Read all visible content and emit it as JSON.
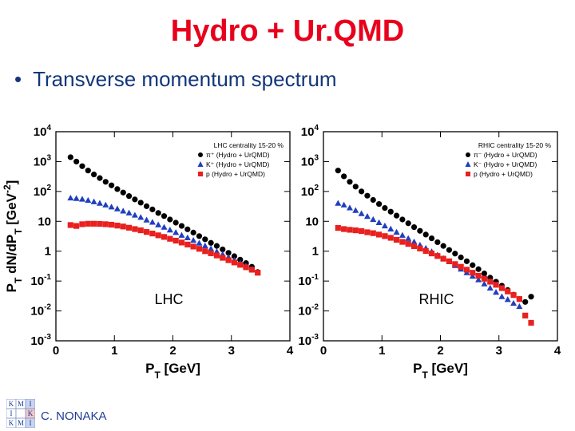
{
  "title": "Hydro + Ur.QMD",
  "bullet": {
    "marker": "•",
    "text": "Transverse momentum spectrum"
  },
  "footer": {
    "author": "C. NONAKA",
    "logo_letters": [
      "K",
      "M",
      "I",
      "I",
      "K",
      "M",
      "I"
    ]
  },
  "colors": {
    "title": "#e8001c",
    "bullet": "#12367a",
    "pion": "#000000",
    "kaon": "#1f3fbf",
    "proton": "#e8201e"
  },
  "chart_data": [
    {
      "type": "scatter",
      "xlabel": "P_T [GeV]",
      "ylabel": "P_T dN/dP_T [GeV^-2]",
      "xlim": [
        0,
        4
      ],
      "ylim": [
        0.001,
        10000
      ],
      "yscale": "log",
      "x_ticks": [
        "0",
        "1",
        "2",
        "3",
        "4"
      ],
      "y_ticks": [
        "10^-3",
        "10^-2",
        "10^-1",
        "1",
        "10",
        "10^2",
        "10^3",
        "10^4"
      ],
      "legend_title": "LHC centrality 15-20 %",
      "legend_position": "top-right",
      "annotation": "LHC",
      "series": [
        {
          "name": "π⁺ (Hydro + UrQMD)",
          "marker": "circle",
          "color": "#000000",
          "x": [
            0.25,
            0.35,
            0.45,
            0.55,
            0.65,
            0.75,
            0.85,
            0.95,
            1.05,
            1.15,
            1.25,
            1.35,
            1.45,
            1.55,
            1.65,
            1.75,
            1.85,
            1.95,
            2.05,
            2.15,
            2.25,
            2.35,
            2.45,
            2.55,
            2.65,
            2.75,
            2.85,
            2.95,
            3.05,
            3.15,
            3.25,
            3.35,
            3.45
          ],
          "y": [
            1400,
            1000,
            700,
            500,
            370,
            280,
            210,
            160,
            120,
            92,
            70,
            54,
            42,
            32,
            25,
            19,
            15,
            11.5,
            9,
            7,
            5.4,
            4.2,
            3.2,
            2.5,
            1.9,
            1.5,
            1.15,
            0.88,
            0.68,
            0.52,
            0.4,
            0.3,
            0.2
          ]
        },
        {
          "name": "K⁺ (Hydro + UrQMD)",
          "marker": "triangle",
          "color": "#1f3fbf",
          "x": [
            0.25,
            0.35,
            0.45,
            0.55,
            0.65,
            0.75,
            0.85,
            0.95,
            1.05,
            1.15,
            1.25,
            1.35,
            1.45,
            1.55,
            1.65,
            1.75,
            1.85,
            1.95,
            2.05,
            2.15,
            2.25,
            2.35,
            2.45,
            2.55,
            2.65,
            2.75,
            2.85,
            2.95,
            3.05,
            3.15,
            3.25,
            3.35,
            3.45
          ],
          "y": [
            60,
            58,
            55,
            50,
            45,
            40,
            35,
            30,
            26,
            22,
            19,
            16,
            13.5,
            11,
            9.3,
            7.6,
            6.3,
            5.1,
            4.2,
            3.4,
            2.8,
            2.3,
            1.85,
            1.5,
            1.2,
            0.97,
            0.78,
            0.63,
            0.5,
            0.4,
            0.32,
            0.25,
            0.19
          ]
        },
        {
          "name": "p (Hydro + UrQMD)",
          "marker": "square",
          "color": "#e8201e",
          "x": [
            0.25,
            0.35,
            0.45,
            0.55,
            0.65,
            0.75,
            0.85,
            0.95,
            1.05,
            1.15,
            1.25,
            1.35,
            1.45,
            1.55,
            1.65,
            1.75,
            1.85,
            1.95,
            2.05,
            2.15,
            2.25,
            2.35,
            2.45,
            2.55,
            2.65,
            2.75,
            2.85,
            2.95,
            3.05,
            3.15,
            3.25,
            3.35,
            3.45
          ],
          "y": [
            7.5,
            7,
            8,
            8.3,
            8.3,
            8.2,
            8,
            7.7,
            7.2,
            6.7,
            6.1,
            5.5,
            5,
            4.4,
            3.9,
            3.4,
            3,
            2.6,
            2.25,
            1.95,
            1.67,
            1.43,
            1.2,
            1,
            0.85,
            0.72,
            0.6,
            0.5,
            0.42,
            0.35,
            0.29,
            0.24,
            0.19
          ]
        }
      ]
    },
    {
      "type": "scatter",
      "xlabel": "P_T [GeV]",
      "xlim": [
        0,
        4
      ],
      "ylim": [
        0.001,
        10000
      ],
      "yscale": "log",
      "x_ticks": [
        "0",
        "1",
        "2",
        "3",
        "4"
      ],
      "y_ticks": [
        "10^-3",
        "10^-2",
        "10^-1",
        "1",
        "10",
        "10^2",
        "10^3",
        "10^4"
      ],
      "legend_title": "RHIC centrality 15-20 %",
      "legend_position": "top-right",
      "annotation": "RHIC",
      "series": [
        {
          "name": "π⁻ (Hydro + UrQMD)",
          "marker": "circle",
          "color": "#000000",
          "x": [
            0.25,
            0.35,
            0.45,
            0.55,
            0.65,
            0.75,
            0.85,
            0.95,
            1.05,
            1.15,
            1.25,
            1.35,
            1.45,
            1.55,
            1.65,
            1.75,
            1.85,
            1.95,
            2.05,
            2.15,
            2.25,
            2.35,
            2.45,
            2.55,
            2.65,
            2.75,
            2.85,
            2.95,
            3.05,
            3.15,
            3.25,
            3.35,
            3.45,
            3.55
          ],
          "y": [
            500,
            320,
            210,
            145,
            100,
            72,
            52,
            38,
            28,
            21,
            15.5,
            11.5,
            8.6,
            6.4,
            4.8,
            3.6,
            2.7,
            2,
            1.5,
            1.1,
            0.83,
            0.62,
            0.46,
            0.34,
            0.25,
            0.18,
            0.13,
            0.095,
            0.07,
            0.05,
            0.035,
            0.025,
            0.02,
            0.03
          ]
        },
        {
          "name": "K⁻ (Hydro + UrQMD)",
          "marker": "triangle",
          "color": "#1f3fbf",
          "x": [
            0.25,
            0.35,
            0.45,
            0.55,
            0.65,
            0.75,
            0.85,
            0.95,
            1.05,
            1.15,
            1.25,
            1.35,
            1.45,
            1.55,
            1.65,
            1.75,
            1.85,
            1.95,
            2.05,
            2.15,
            2.25,
            2.35,
            2.45,
            2.55,
            2.65,
            2.75,
            2.85,
            2.95,
            3.05,
            3.15,
            3.25,
            3.35
          ],
          "y": [
            40,
            35,
            28,
            23,
            18,
            14.5,
            11.5,
            9,
            7,
            5.5,
            4.3,
            3.4,
            2.65,
            2.05,
            1.6,
            1.25,
            0.96,
            0.74,
            0.57,
            0.44,
            0.33,
            0.25,
            0.19,
            0.145,
            0.11,
            0.08,
            0.058,
            0.042,
            0.03,
            0.024,
            0.018,
            0.014
          ]
        },
        {
          "name": "p (Hydro + UrQMD)",
          "marker": "square",
          "color": "#e8201e",
          "x": [
            0.25,
            0.35,
            0.45,
            0.55,
            0.65,
            0.75,
            0.85,
            0.95,
            1.05,
            1.15,
            1.25,
            1.35,
            1.45,
            1.55,
            1.65,
            1.75,
            1.85,
            1.95,
            2.05,
            2.15,
            2.25,
            2.35,
            2.45,
            2.55,
            2.65,
            2.75,
            2.85,
            2.95,
            3.05,
            3.15,
            3.25,
            3.35,
            3.45,
            3.55
          ],
          "y": [
            6,
            5.5,
            5.2,
            5,
            4.7,
            4.3,
            4,
            3.6,
            3.2,
            2.8,
            2.4,
            2.05,
            1.75,
            1.47,
            1.23,
            1.02,
            0.84,
            0.69,
            0.56,
            0.46,
            0.37,
            0.3,
            0.24,
            0.19,
            0.15,
            0.12,
            0.095,
            0.075,
            0.058,
            0.045,
            0.034,
            0.025,
            0.007,
            0.004
          ]
        }
      ]
    }
  ]
}
